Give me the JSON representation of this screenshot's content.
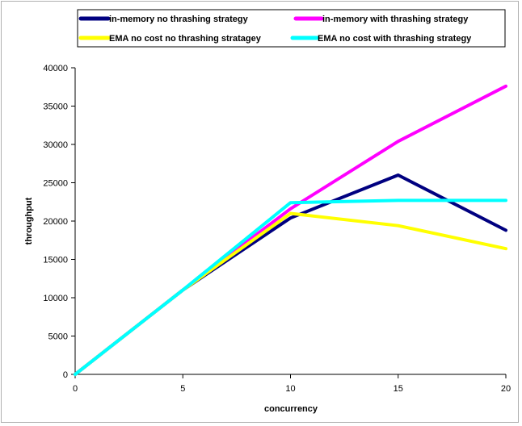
{
  "chart_data": {
    "type": "line",
    "title": "",
    "xlabel": "concurrency",
    "ylabel": "throughput",
    "x": [
      0,
      5,
      10,
      15,
      20
    ],
    "xlim": [
      0,
      20
    ],
    "ylim": [
      0,
      40000
    ],
    "xticks": [
      0,
      5,
      10,
      15,
      20
    ],
    "yticks": [
      0,
      5000,
      10000,
      15000,
      20000,
      25000,
      30000,
      35000,
      40000
    ],
    "grid": false,
    "legend_position": "top",
    "series": [
      {
        "name": "in-memory no thrashing strategy",
        "color": "#000080",
        "values": [
          0,
          11000,
          20400,
          26000,
          18800
        ]
      },
      {
        "name": "in-memory with thrashing strategy",
        "color": "#ff00ff",
        "values": [
          0,
          11000,
          21600,
          30400,
          37600
        ]
      },
      {
        "name": "EMA no cost no thrashing stratagey",
        "color": "#ffff00",
        "values": [
          0,
          11000,
          21000,
          19400,
          16400
        ]
      },
      {
        "name": "EMA no cost with thrashing strategy",
        "color": "#00ffff",
        "values": [
          0,
          11000,
          22400,
          22700,
          22700
        ]
      }
    ]
  }
}
